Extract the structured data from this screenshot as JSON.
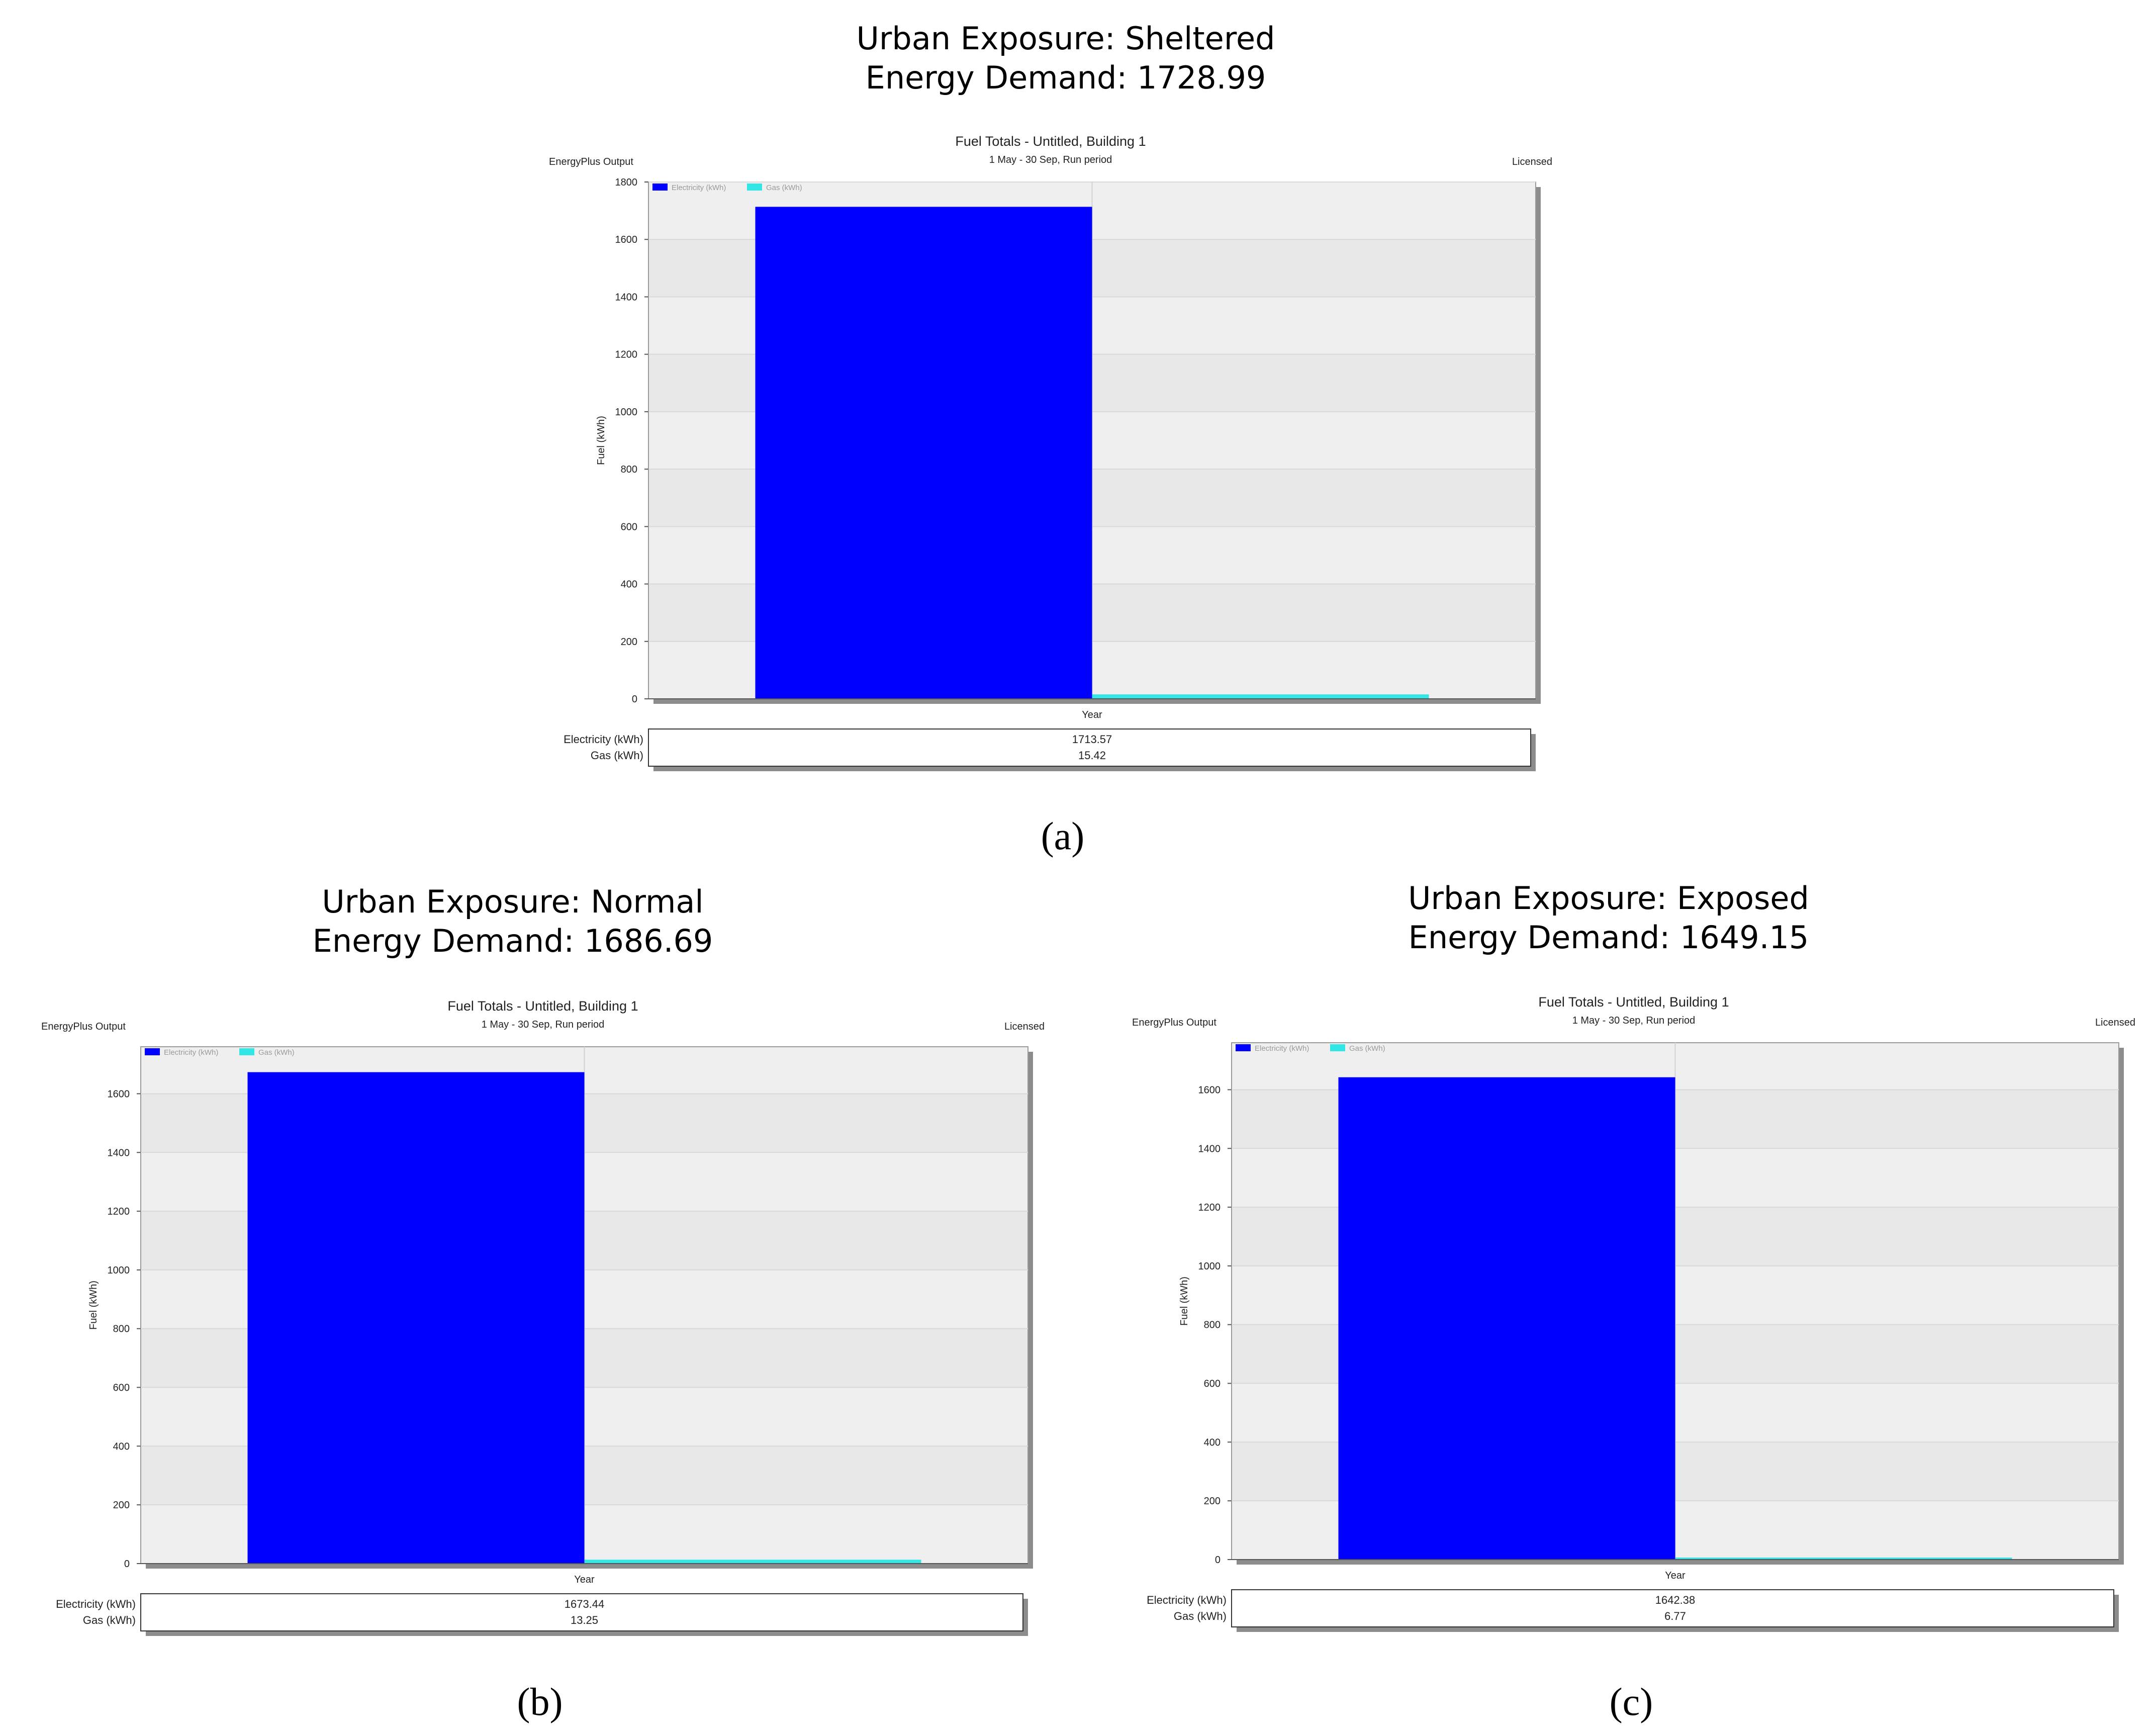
{
  "panels": [
    {
      "id": "a",
      "title_line1": "Urban Exposure: Sheltered",
      "title_line2": "Energy Demand: 1728.99",
      "caption": "(a)",
      "chart_title": "Fuel Totals - Untitled, Building 1",
      "chart_subtitle": "1 May - 30 Sep, Run period",
      "left_note": "EnergyPlus Output",
      "right_note": "Licensed"
    },
    {
      "id": "b",
      "title_line1": "Urban Exposure: Normal",
      "title_line2": "Energy Demand: 1686.69",
      "caption": "(b)",
      "chart_title": "Fuel Totals - Untitled, Building 1",
      "chart_subtitle": "1 May - 30 Sep, Run period",
      "left_note": "EnergyPlus Output",
      "right_note": "Licensed"
    },
    {
      "id": "c",
      "title_line1": "Urban Exposure: Exposed",
      "title_line2": "Energy Demand: 1649.15",
      "caption": "(c)",
      "chart_title": "Fuel Totals - Untitled, Building 1",
      "chart_subtitle": "1 May - 30 Sep, Run period",
      "left_note": "EnergyPlus Output",
      "right_note": "Licensed"
    }
  ],
  "chart_data": [
    {
      "type": "bar",
      "title": "Fuel Totals - Untitled, Building 1",
      "subtitle": "1 May - 30 Sep, Run period",
      "xlabel": "Year",
      "ylabel": "Fuel (kWh)",
      "categories": [
        "Year"
      ],
      "series": [
        {
          "name": "Electricity (kWh)",
          "values": [
            1713.57
          ],
          "label": "1713.57",
          "color": "#0000ff"
        },
        {
          "name": "Gas (kWh)",
          "values": [
            15.42
          ],
          "label": "15.42",
          "color": "#33e6e6"
        }
      ],
      "ylim": [
        0,
        1800
      ],
      "yticks": [
        0,
        200,
        400,
        600,
        800,
        1000,
        1200,
        1400,
        1600,
        1800
      ],
      "legend": "top-left",
      "grid": true
    },
    {
      "type": "bar",
      "title": "Fuel Totals - Untitled, Building 1",
      "subtitle": "1 May - 30 Sep, Run period",
      "xlabel": "Year",
      "ylabel": "Fuel (kWh)",
      "categories": [
        "Year"
      ],
      "series": [
        {
          "name": "Electricity (kWh)",
          "values": [
            1673.44
          ],
          "label": "1673.44",
          "color": "#0000ff"
        },
        {
          "name": "Gas (kWh)",
          "values": [
            13.25
          ],
          "label": "13.25",
          "color": "#33e6e6"
        }
      ],
      "ylim": [
        0,
        1760
      ],
      "yticks": [
        0,
        200,
        400,
        600,
        800,
        1000,
        1200,
        1400,
        1600
      ],
      "legend": "top-left",
      "grid": true
    },
    {
      "type": "bar",
      "title": "Fuel Totals - Untitled, Building 1",
      "subtitle": "1 May - 30 Sep, Run period",
      "xlabel": "Year",
      "ylabel": "Fuel (kWh)",
      "categories": [
        "Year"
      ],
      "series": [
        {
          "name": "Electricity (kWh)",
          "values": [
            1642.38
          ],
          "label": "1642.38",
          "color": "#0000ff"
        },
        {
          "name": "Gas (kWh)",
          "values": [
            6.77
          ],
          "label": "6.77",
          "color": "#33e6e6"
        }
      ],
      "ylim": [
        0,
        1760
      ],
      "yticks": [
        0,
        200,
        400,
        600,
        800,
        1000,
        1200,
        1400,
        1600
      ],
      "legend": "top-left",
      "grid": true
    }
  ]
}
